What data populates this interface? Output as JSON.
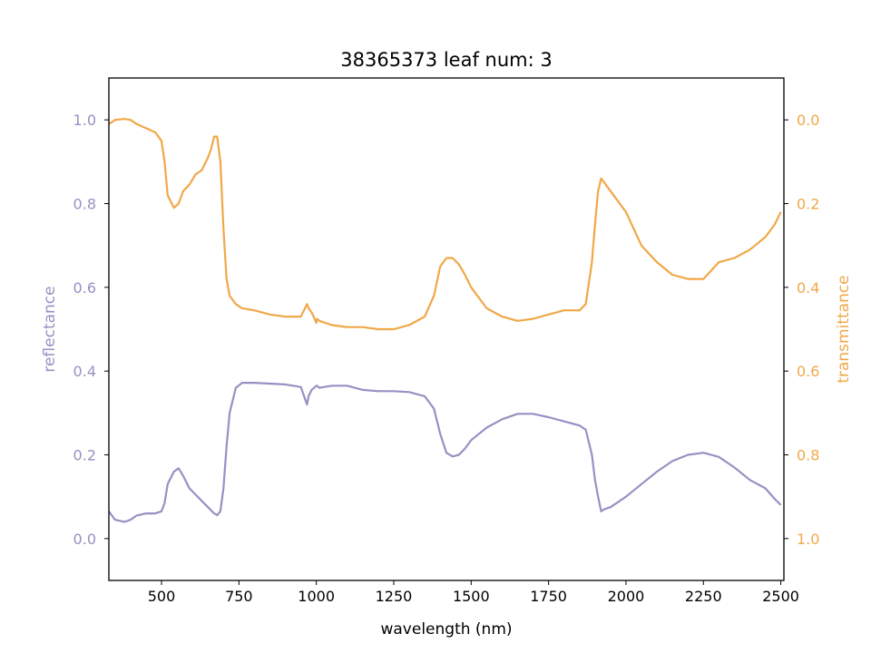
{
  "chart_data": {
    "type": "line",
    "title": "38365373 leaf num: 3",
    "xlabel": "wavelength (nm)",
    "ylabel_left": "reflectance",
    "ylabel_right": "transmittance",
    "xlim": [
      330,
      2510
    ],
    "ylim_left": [
      -0.1,
      1.1
    ],
    "ylim_right_inverted": [
      1.1,
      -0.1
    ],
    "x_ticks": [
      500,
      750,
      1000,
      1250,
      1500,
      1750,
      2000,
      2250,
      2500
    ],
    "y_left_ticks": [
      0.0,
      0.2,
      0.4,
      0.6,
      0.8,
      1.0
    ],
    "y_right_ticks": [
      0.0,
      0.2,
      0.4,
      0.6,
      0.8,
      1.0
    ],
    "x_tick_labels": [
      "500",
      "750",
      "1000",
      "1250",
      "1500",
      "1750",
      "2000",
      "2250",
      "2500"
    ],
    "y_left_tick_labels": [
      "0.0",
      "0.2",
      "0.4",
      "0.6",
      "0.8",
      "1.0"
    ],
    "y_right_tick_labels": [
      "0.0",
      "0.2",
      "0.4",
      "0.6",
      "0.8",
      "1.0"
    ],
    "grid": false,
    "colors": {
      "reflectance": "#9691c3",
      "transmittance": "#f0a848",
      "axes": "#000000"
    },
    "series": [
      {
        "axis": "left",
        "x": [
          330,
          350,
          380,
          400,
          420,
          450,
          480,
          500,
          510,
          520,
          540,
          555,
          570,
          590,
          610,
          630,
          650,
          670,
          680,
          690,
          700,
          710,
          720,
          740,
          760,
          800,
          850,
          900,
          950,
          970,
          975,
          985,
          1000,
          1002,
          1010,
          1050,
          1100,
          1150,
          1200,
          1250,
          1300,
          1350,
          1380,
          1400,
          1420,
          1440,
          1460,
          1480,
          1500,
          1550,
          1600,
          1650,
          1700,
          1750,
          1800,
          1850,
          1870,
          1890,
          1900,
          1910,
          1920,
          1930,
          1950,
          2000,
          2050,
          2100,
          2150,
          2200,
          2250,
          2300,
          2350,
          2400,
          2450,
          2480,
          2500
        ],
        "values": [
          0.065,
          0.045,
          0.04,
          0.045,
          0.055,
          0.06,
          0.06,
          0.065,
          0.085,
          0.13,
          0.16,
          0.168,
          0.15,
          0.12,
          0.105,
          0.09,
          0.075,
          0.06,
          0.056,
          0.065,
          0.12,
          0.22,
          0.3,
          0.36,
          0.372,
          0.372,
          0.37,
          0.368,
          0.362,
          0.32,
          0.34,
          0.355,
          0.365,
          0.365,
          0.36,
          0.365,
          0.365,
          0.355,
          0.352,
          0.352,
          0.35,
          0.34,
          0.31,
          0.25,
          0.205,
          0.196,
          0.2,
          0.215,
          0.235,
          0.265,
          0.285,
          0.298,
          0.298,
          0.29,
          0.28,
          0.27,
          0.26,
          0.2,
          0.14,
          0.1,
          0.065,
          0.07,
          0.075,
          0.1,
          0.13,
          0.16,
          0.185,
          0.2,
          0.205,
          0.195,
          0.17,
          0.14,
          0.12,
          0.095,
          0.08
        ]
      },
      {
        "axis": "right",
        "x": [
          330,
          350,
          380,
          400,
          420,
          450,
          480,
          500,
          510,
          520,
          540,
          555,
          570,
          590,
          610,
          630,
          650,
          660,
          670,
          680,
          690,
          700,
          710,
          720,
          740,
          760,
          800,
          850,
          900,
          950,
          970,
          975,
          985,
          1000,
          1002,
          1010,
          1050,
          1100,
          1150,
          1200,
          1250,
          1300,
          1350,
          1380,
          1400,
          1420,
          1440,
          1460,
          1480,
          1500,
          1550,
          1600,
          1650,
          1700,
          1750,
          1800,
          1850,
          1870,
          1890,
          1900,
          1910,
          1920,
          1930,
          1950,
          2000,
          2050,
          2100,
          2150,
          2200,
          2250,
          2300,
          2350,
          2400,
          2450,
          2480,
          2500
        ],
        "values": [
          0.01,
          0.0,
          -0.002,
          0.0,
          0.01,
          0.02,
          0.03,
          0.05,
          0.1,
          0.18,
          0.21,
          0.2,
          0.17,
          0.155,
          0.13,
          0.12,
          0.09,
          0.07,
          0.04,
          0.04,
          0.1,
          0.26,
          0.38,
          0.42,
          0.44,
          0.45,
          0.455,
          0.465,
          0.47,
          0.47,
          0.44,
          0.45,
          0.46,
          0.485,
          0.475,
          0.48,
          0.49,
          0.495,
          0.495,
          0.5,
          0.5,
          0.49,
          0.47,
          0.42,
          0.35,
          0.33,
          0.33,
          0.345,
          0.37,
          0.4,
          0.45,
          0.47,
          0.48,
          0.475,
          0.465,
          0.455,
          0.455,
          0.44,
          0.34,
          0.25,
          0.17,
          0.14,
          0.15,
          0.17,
          0.22,
          0.3,
          0.34,
          0.37,
          0.38,
          0.38,
          0.34,
          0.33,
          0.31,
          0.28,
          0.25,
          0.22
        ]
      }
    ]
  }
}
